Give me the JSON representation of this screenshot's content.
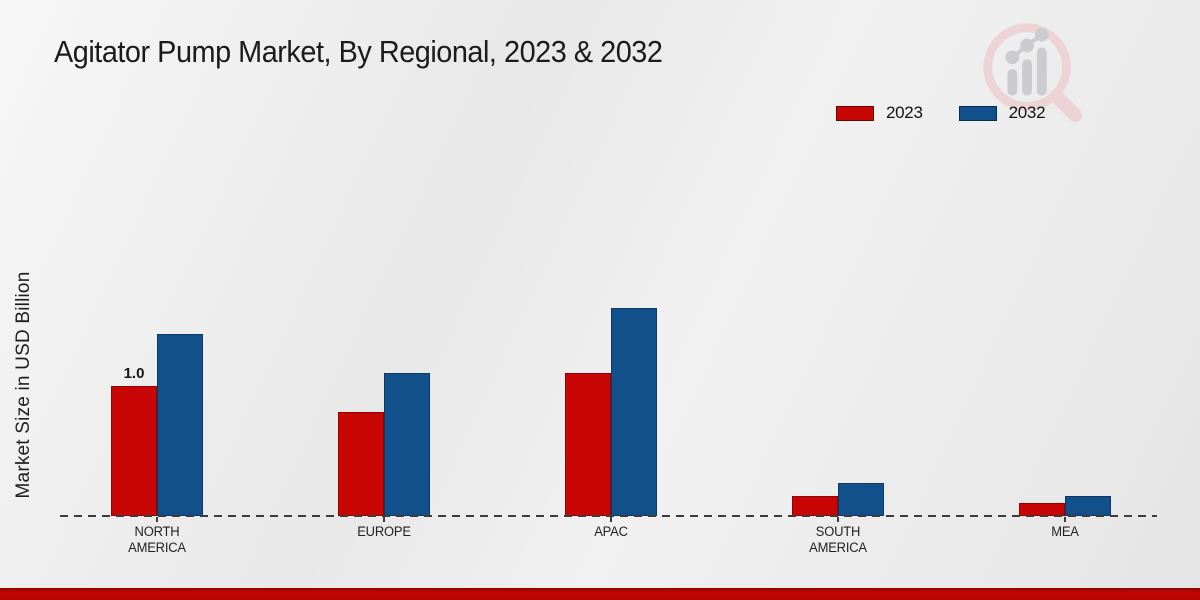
{
  "page": {
    "title": "Agitator Pump Market, By Regional, 2023 & 2032"
  },
  "chart_data": {
    "type": "bar",
    "title": "Agitator Pump Market, By Regional, 2023 & 2032",
    "xlabel": "",
    "ylabel": "Market Size in USD Billion",
    "categories": [
      "NORTH AMERICA",
      "EUROPE",
      "APAC",
      "SOUTH AMERICA",
      "MEA"
    ],
    "series": [
      {
        "name": "2023",
        "color": "#c90606",
        "values": [
          1.0,
          0.8,
          1.1,
          0.15,
          0.1
        ]
      },
      {
        "name": "2032",
        "color": "#12508c",
        "values": [
          1.4,
          1.1,
          1.6,
          0.25,
          0.15
        ]
      }
    ],
    "bar_value_labels": [
      {
        "category_index": 0,
        "series_index": 0,
        "text": "1.0"
      }
    ],
    "ylim": [
      0,
      1.8
    ],
    "grid": false,
    "legend_position": "top-right",
    "baseline_style": "dashed"
  },
  "branding": {
    "logo_name": "magnifier-bar-chart-logo",
    "accent_bar_color": "#b00404",
    "logo_ring_color": "#eccfd2",
    "logo_bars_color": "#c7c7c9"
  }
}
